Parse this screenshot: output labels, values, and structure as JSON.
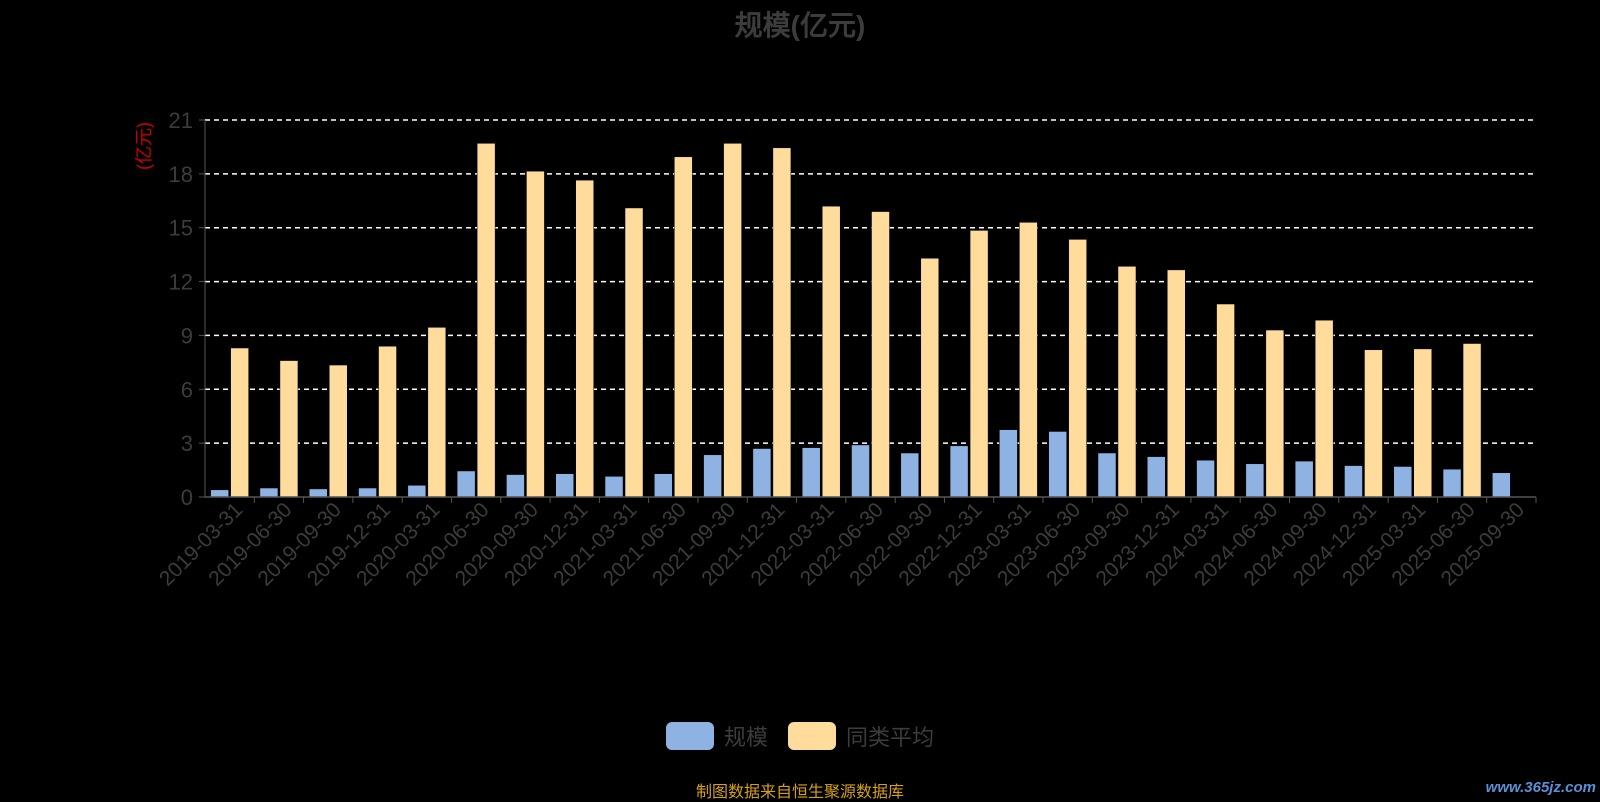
{
  "chart_data": {
    "type": "bar",
    "title": "规模(亿元)",
    "ylabel": "(亿元)",
    "xlabel": "",
    "ylim": [
      0,
      21
    ],
    "yticks": [
      0,
      3,
      6,
      9,
      12,
      15,
      18,
      21
    ],
    "grid": true,
    "legend_position": "bottom-center",
    "categories": [
      "2019-03-31",
      "2019-06-30",
      "2019-09-30",
      "2019-12-31",
      "2020-03-31",
      "2020-06-30",
      "2020-09-30",
      "2020-12-31",
      "2021-03-31",
      "2021-06-30",
      "2021-09-30",
      "2021-12-31",
      "2022-03-31",
      "2022-06-30",
      "2022-09-30",
      "2022-12-31",
      "2023-03-31",
      "2023-06-30",
      "2023-09-30",
      "2023-12-31",
      "2024-03-31",
      "2024-06-30",
      "2024-09-30",
      "2024-12-31",
      "2025-03-31",
      "2025-06-30",
      "2025-09-30"
    ],
    "series": [
      {
        "name": "规模",
        "color": "#8eb3e2",
        "values": [
          0.4,
          0.5,
          0.45,
          0.5,
          0.65,
          1.45,
          1.25,
          1.3,
          1.15,
          1.3,
          2.35,
          2.7,
          2.75,
          2.9,
          2.45,
          2.85,
          3.75,
          3.65,
          2.45,
          2.25,
          2.05,
          1.85,
          2.0,
          1.75,
          1.7,
          1.55,
          1.35
        ]
      },
      {
        "name": "同类平均",
        "color": "#ffdb9c",
        "values": [
          8.3,
          7.6,
          7.35,
          8.4,
          9.45,
          19.7,
          18.15,
          17.65,
          16.1,
          18.95,
          19.7,
          19.45,
          16.2,
          15.9,
          13.3,
          14.85,
          15.3,
          14.35,
          12.85,
          12.65,
          10.75,
          9.3,
          9.85,
          8.2,
          8.25,
          8.55,
          null
        ]
      }
    ]
  },
  "legend": {
    "items": [
      {
        "label": "规模",
        "color": "#8eb3e2"
      },
      {
        "label": "同类平均",
        "color": "#ffdb9c"
      }
    ]
  },
  "footer": {
    "source_note": "制图数据来自恒生聚源数据库",
    "watermark": "www.365jz.com"
  }
}
